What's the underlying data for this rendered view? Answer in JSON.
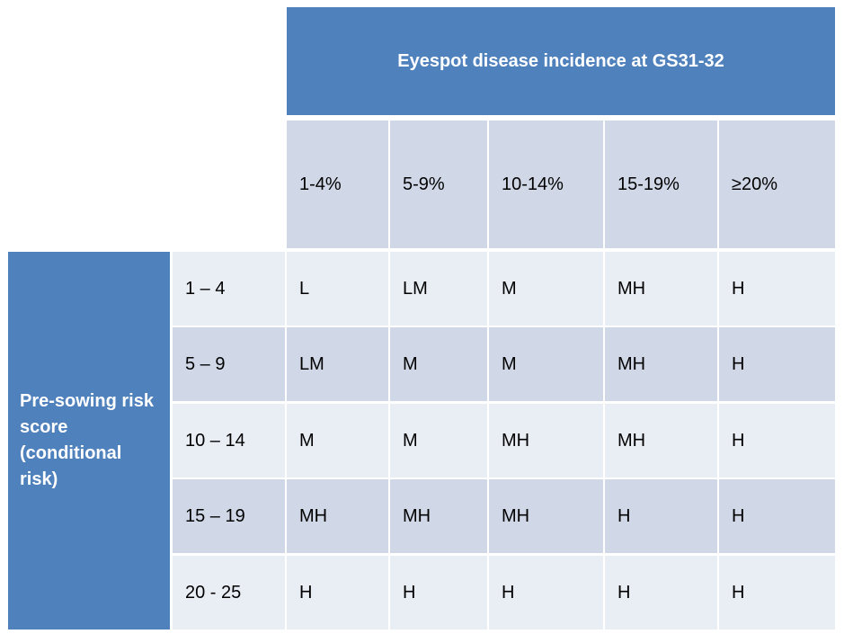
{
  "table": {
    "main_header": "Eyespot disease incidence at GS31-32",
    "row_header": "Pre-sowing risk score (conditional risk)",
    "columns": [
      "1-4%",
      "5-9%",
      "10-14%",
      "15-19%",
      "≥20%"
    ],
    "rows": [
      {
        "score": "1 – 4",
        "cells": [
          "L",
          "LM",
          "M",
          "MH",
          "H"
        ]
      },
      {
        "score": "5 – 9",
        "cells": [
          "LM",
          "M",
          "M",
          "MH",
          "H"
        ]
      },
      {
        "score": "10 – 14",
        "cells": [
          "M",
          "M",
          "MH",
          "MH",
          "H"
        ]
      },
      {
        "score": "15 – 19",
        "cells": [
          "MH",
          "MH",
          "MH",
          "H",
          "H"
        ]
      },
      {
        "score": "20 - 25",
        "cells": [
          "H",
          "H",
          "H",
          "H",
          "H"
        ]
      }
    ],
    "colors": {
      "header_blue": "#4f81bd",
      "cell_dark": "#d0d8e8",
      "cell_light": "#e9edf4"
    }
  }
}
